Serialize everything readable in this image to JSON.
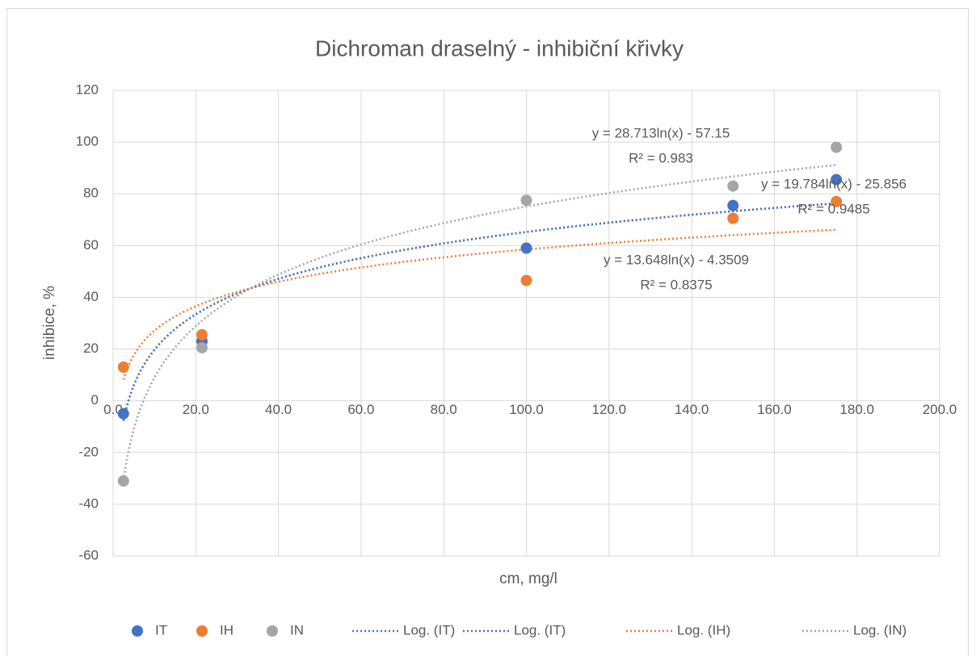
{
  "chart_data": {
    "type": "scatter",
    "title": "Dichroman draselný - inhibiční křivky",
    "x_label": "cm, mg/l",
    "y_label": "inhibice, %",
    "x": [
      2.5,
      21.5,
      100,
      150,
      175
    ],
    "series": [
      {
        "name": "IT",
        "color": "#4472c4",
        "values": [
          -5,
          23,
          59,
          75.5,
          85.5
        ]
      },
      {
        "name": "IH",
        "color": "#ed7d31",
        "values": [
          13,
          25.5,
          46.5,
          70.5,
          77
        ]
      },
      {
        "name": "IN",
        "color": "#a5a5a5",
        "values": [
          -31,
          20.5,
          77.5,
          83,
          98
        ]
      }
    ],
    "trendlines": [
      {
        "name": "Log. (IT)",
        "color": "#4472c4",
        "a": 19.784,
        "b": -25.856,
        "equation": "y = 19.784ln(x) - 25.856",
        "r_squared": "R² = 0.9485"
      },
      {
        "name": "Log. (IT)",
        "color": "#4472c4",
        "a": 19.784,
        "b": -25.856
      },
      {
        "name": "Log. (IH)",
        "color": "#ed7d31",
        "a": 13.648,
        "b": -4.3509,
        "equation": "y = 13.648ln(x) - 4.3509",
        "r_squared": "R² = 0.8375"
      },
      {
        "name": "Log. (IN)",
        "color": "#a5a5a5",
        "a": 28.713,
        "b": -57.15,
        "equation": "y = 28.713ln(x) - 57.15",
        "r_squared": "R² = 0.983"
      }
    ],
    "xlim": [
      0,
      200
    ],
    "xticks": [
      {
        "value": 0,
        "label": "0.0"
      },
      {
        "value": 20,
        "label": "20.0"
      },
      {
        "value": 40,
        "label": "40.0"
      },
      {
        "value": 60,
        "label": "60.0"
      },
      {
        "value": 80,
        "label": "80.0"
      },
      {
        "value": 100,
        "label": "100.0"
      },
      {
        "value": 120,
        "label": "120.0"
      },
      {
        "value": 140,
        "label": "140.0"
      },
      {
        "value": 160,
        "label": "160.0"
      },
      {
        "value": 180,
        "label": "180.0"
      },
      {
        "value": 200,
        "label": "200.0"
      }
    ],
    "ylim": [
      -60,
      120
    ],
    "yticks": [
      -60,
      -40,
      -20,
      0,
      20,
      40,
      60,
      80,
      100,
      120
    ],
    "grid": true,
    "legend": "bottom"
  }
}
